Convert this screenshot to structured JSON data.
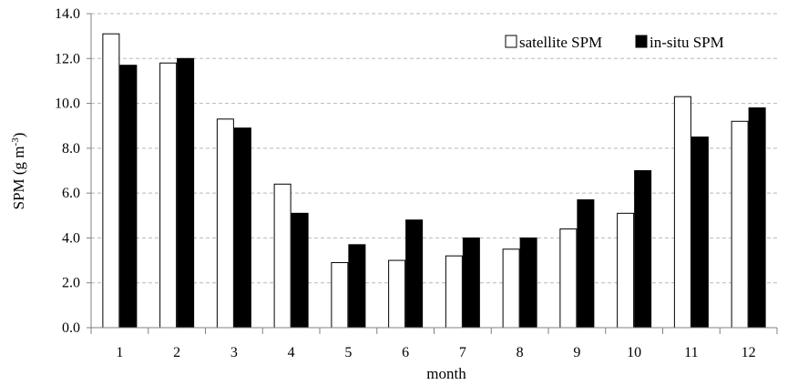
{
  "chart_data": {
    "type": "bar",
    "title": "",
    "xlabel": "month",
    "ylabel": "SPM (g m",
    "ylabel_superscript": "-3",
    "ylabel_suffix": ")",
    "categories": [
      "1",
      "2",
      "3",
      "4",
      "5",
      "6",
      "7",
      "8",
      "9",
      "10",
      "11",
      "12"
    ],
    "series": [
      {
        "name": "satellite SPM",
        "color": "#ffffff",
        "stroke": "#000000",
        "values": [
          13.1,
          11.8,
          9.3,
          6.4,
          2.9,
          3.0,
          3.2,
          3.5,
          4.4,
          5.1,
          10.3,
          9.2
        ]
      },
      {
        "name": "in-situ SPM",
        "color": "#000000",
        "stroke": "#000000",
        "values": [
          11.7,
          12.0,
          8.9,
          5.1,
          3.7,
          4.8,
          4.0,
          4.0,
          5.7,
          7.0,
          8.5,
          9.8
        ]
      }
    ],
    "ylim": [
      0,
      14
    ],
    "yticks": [
      "0.0",
      "2.0",
      "4.0",
      "6.0",
      "8.0",
      "10.0",
      "12.0",
      "14.0"
    ],
    "grid": true,
    "grid_style": "dashed",
    "legend_position": "top-right"
  }
}
